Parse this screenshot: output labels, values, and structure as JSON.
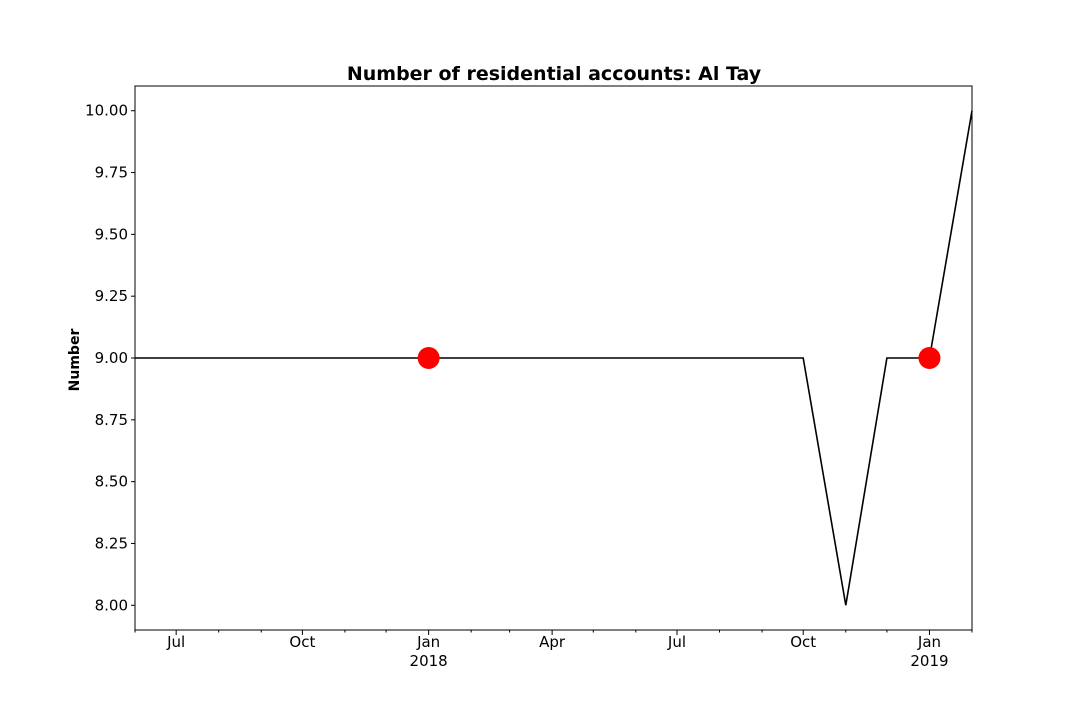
{
  "chart_data": {
    "type": "line",
    "title": "Number of residential accounts: Al Tay",
    "xlabel": "",
    "ylabel": "Number",
    "ylim": [
      7.9,
      10.1
    ],
    "xlim": [
      "2017-06-01",
      "2019-02-01"
    ],
    "grid": false,
    "yticks": [
      "8.00",
      "8.25",
      "8.50",
      "8.75",
      "9.00",
      "9.25",
      "9.50",
      "9.75",
      "10.00"
    ],
    "ytick_values": [
      8.0,
      8.25,
      8.5,
      8.75,
      9.0,
      9.25,
      9.5,
      9.75,
      10.0
    ],
    "xticks": [
      {
        "date": "2017-07-01",
        "label": "Jul",
        "sublabel": ""
      },
      {
        "date": "2017-10-01",
        "label": "Oct",
        "sublabel": ""
      },
      {
        "date": "2018-01-01",
        "label": "Jan",
        "sublabel": "2018"
      },
      {
        "date": "2018-04-01",
        "label": "Apr",
        "sublabel": ""
      },
      {
        "date": "2018-07-01",
        "label": "Jul",
        "sublabel": ""
      },
      {
        "date": "2018-10-01",
        "label": "Oct",
        "sublabel": ""
      },
      {
        "date": "2019-01-01",
        "label": "Jan",
        "sublabel": "2019"
      }
    ],
    "minor_tick_dates": [
      "2017-06-01",
      "2017-08-01",
      "2017-09-01",
      "2017-11-01",
      "2017-12-01",
      "2018-02-01",
      "2018-03-01",
      "2018-05-01",
      "2018-06-01",
      "2018-08-01",
      "2018-09-01",
      "2018-11-01",
      "2018-12-01",
      "2019-02-01"
    ],
    "series": [
      {
        "color": "#000000",
        "x": [
          "2017-06-01",
          "2017-07-01",
          "2017-08-01",
          "2017-09-01",
          "2017-10-01",
          "2017-11-01",
          "2017-12-01",
          "2018-01-01",
          "2018-02-01",
          "2018-03-01",
          "2018-04-01",
          "2018-05-01",
          "2018-06-01",
          "2018-07-01",
          "2018-08-01",
          "2018-09-01",
          "2018-10-01",
          "2018-11-01",
          "2018-12-01",
          "2019-01-01",
          "2019-02-01"
        ],
        "values": [
          9,
          9,
          9,
          9,
          9,
          9,
          9,
          9,
          9,
          9,
          9,
          9,
          9,
          9,
          9,
          9,
          9,
          8,
          9,
          9,
          10
        ]
      }
    ],
    "markers": {
      "color": "#ff0000",
      "x": [
        "2018-01-01",
        "2019-01-01"
      ],
      "values": [
        9,
        9
      ]
    }
  }
}
